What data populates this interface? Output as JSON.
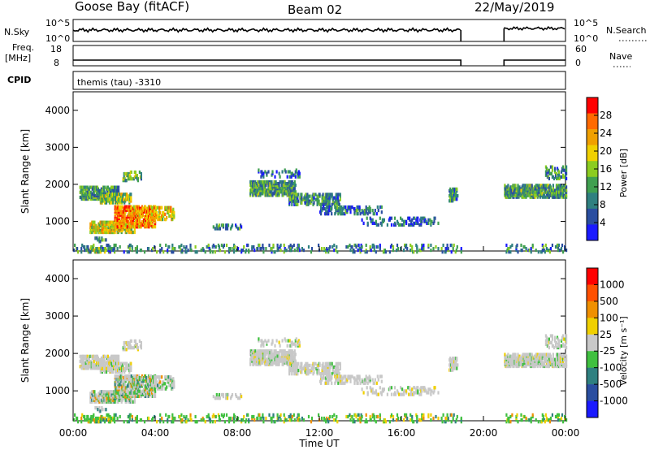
{
  "header": {
    "station": "Goose Bay (fitACF)",
    "beam": "Beam 02",
    "date": "22/May/2019"
  },
  "strips": {
    "left_label_top": "N.Sky",
    "left_label_mid_1": "Freq.",
    "left_label_mid_2": "[MHz]",
    "cpid_label": "CPID",
    "right_label_top": "N.Search",
    "right_label_mid": "Nave",
    "top_scale_left": [
      "10^5",
      "10^0"
    ],
    "top_scale_right": [
      "10^5",
      "10^0"
    ],
    "freq_scale_left": [
      "18",
      "8"
    ],
    "nave_scale_right": [
      "60",
      "0"
    ],
    "cpid_text": "themis (tau)  -3310"
  },
  "chart_data": [
    {
      "type": "heatmap",
      "name": "power",
      "ylabel": "Slant Range [km]",
      "ylim": [
        200,
        4500
      ],
      "yticks": [
        "1000",
        "2000",
        "3000",
        "4000"
      ],
      "xlim_hours": [
        0,
        24
      ],
      "colorbar": {
        "label": "Power [dB]",
        "ticks": [
          "4",
          "8",
          "12",
          "16",
          "20",
          "24",
          "28"
        ],
        "colors": [
          "#1a1aff",
          "#2a4ea0",
          "#2f8080",
          "#40a050",
          "#8ccc20",
          "#f0d000",
          "#f0a000",
          "#ff6a00",
          "#ff0000"
        ]
      }
    },
    {
      "type": "heatmap",
      "name": "velocity",
      "ylabel": "Slant Range [km]",
      "xlabel": "Time UT",
      "ylim": [
        200,
        4500
      ],
      "yticks": [
        "1000",
        "2000",
        "3000",
        "4000"
      ],
      "xticks": [
        "00:00",
        "04:00",
        "08:00",
        "12:00",
        "16:00",
        "20:00",
        "00:00"
      ],
      "xlim_hours": [
        0,
        24
      ],
      "colorbar": {
        "label": "Velocity [m s⁻¹]",
        "ticks": [
          "1000",
          "500",
          "100",
          "25",
          "-25",
          "-100",
          "-500",
          "-1000"
        ],
        "colors": [
          "#1a1aff",
          "#2a4ea0",
          "#2f8080",
          "#40c040",
          "#c8c8c8",
          "#f0d000",
          "#f09000",
          "#ff5000",
          "#ff0000"
        ]
      }
    }
  ]
}
